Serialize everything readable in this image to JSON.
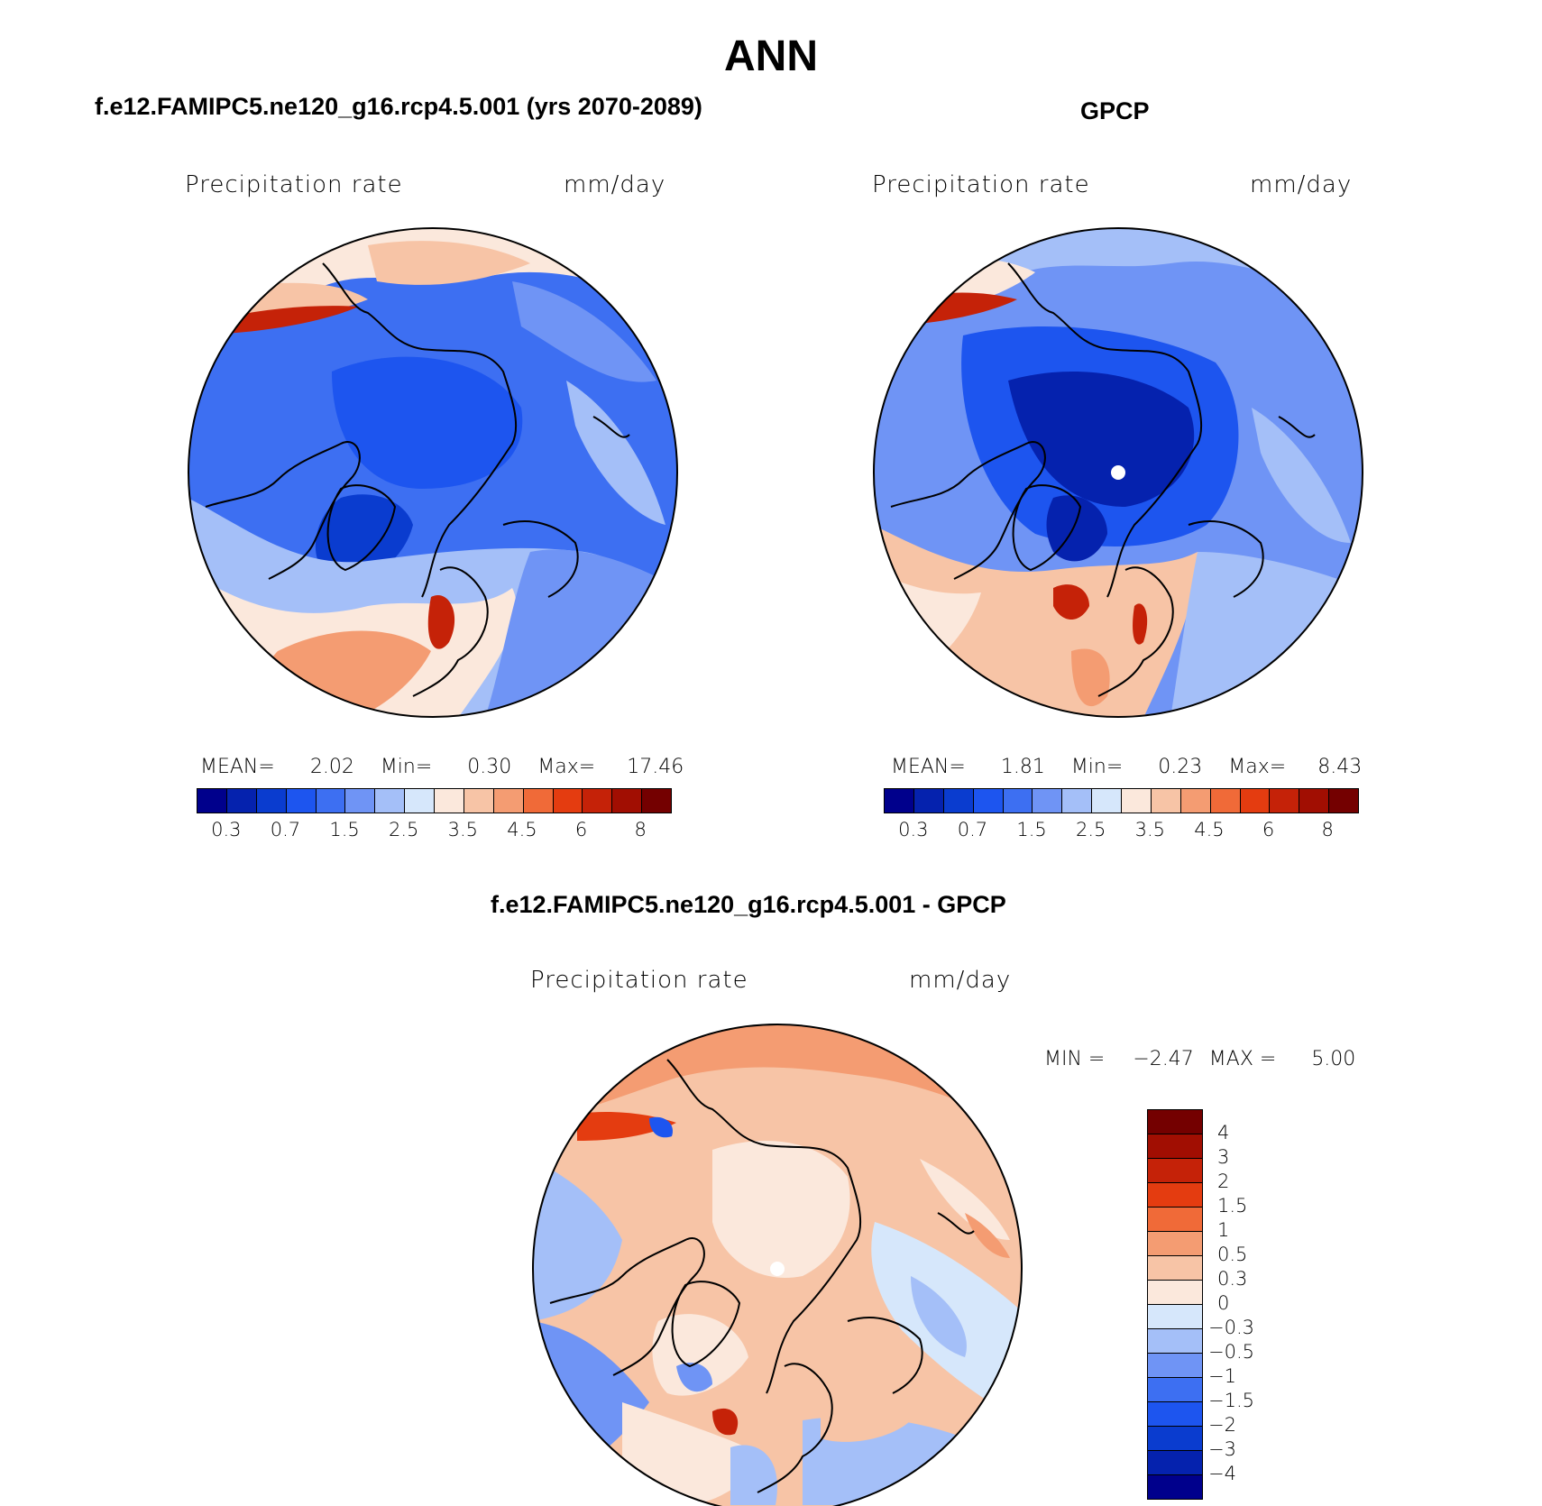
{
  "title": "ANN",
  "colors": {
    "seq": [
      "#00008c",
      "#0522ae",
      "#0a3ccf",
      "#1d55ef",
      "#3d6ff2",
      "#6f94f5",
      "#a4bff8",
      "#d6e7fb",
      "#fbe8dc",
      "#f7c4a6",
      "#f49c72",
      "#f06a38",
      "#e43c10",
      "#c52208",
      "#a10e02",
      "#740000"
    ],
    "diff": [
      "#740000",
      "#a10e02",
      "#c52208",
      "#e43c10",
      "#f06a38",
      "#f49c72",
      "#f7c4a6",
      "#fbe8dc",
      "#d6e7fb",
      "#a4bff8",
      "#6f94f5",
      "#3d6ff2",
      "#1d55ef",
      "#0a3ccf",
      "#0522ae",
      "#00008c"
    ]
  },
  "panels": [
    {
      "title": "f.e12.FAMIPC5.ne120_g16.rcp4.5.001 (yrs 2070-2089)",
      "variable": "Precipitation rate",
      "units": "mm/day",
      "stats": {
        "mean_label": "MEAN=",
        "mean": "2.02",
        "min_label": "Min=",
        "min": "0.30",
        "max_label": "Max=",
        "max": "17.46"
      },
      "ticks": [
        "0.3",
        "0.7",
        "1.5",
        "2.5",
        "3.5",
        "4.5",
        "6",
        "8"
      ]
    },
    {
      "title": "GPCP",
      "variable": "Precipitation rate",
      "units": "mm/day",
      "stats": {
        "mean_label": "MEAN=",
        "mean": "1.81",
        "min_label": "Min=",
        "min": "0.23",
        "max_label": "Max=",
        "max": "8.43"
      },
      "ticks": [
        "0.3",
        "0.7",
        "1.5",
        "2.5",
        "3.5",
        "4.5",
        "6",
        "8"
      ]
    },
    {
      "title": "f.e12.FAMIPC5.ne120_g16.rcp4.5.001 - GPCP",
      "variable": "Precipitation rate",
      "units": "mm/day",
      "stats": {
        "min_label": "MIN =",
        "min": "−2.47",
        "max_label": "MAX =",
        "max": "5.00"
      },
      "ticks": [
        "4",
        "3",
        "2",
        "1.5",
        "1",
        "0.5",
        "0.3",
        "0",
        "−0.3",
        "−0.5",
        "−1",
        "−1.5",
        "−2",
        "−3",
        "−4"
      ]
    }
  ]
}
